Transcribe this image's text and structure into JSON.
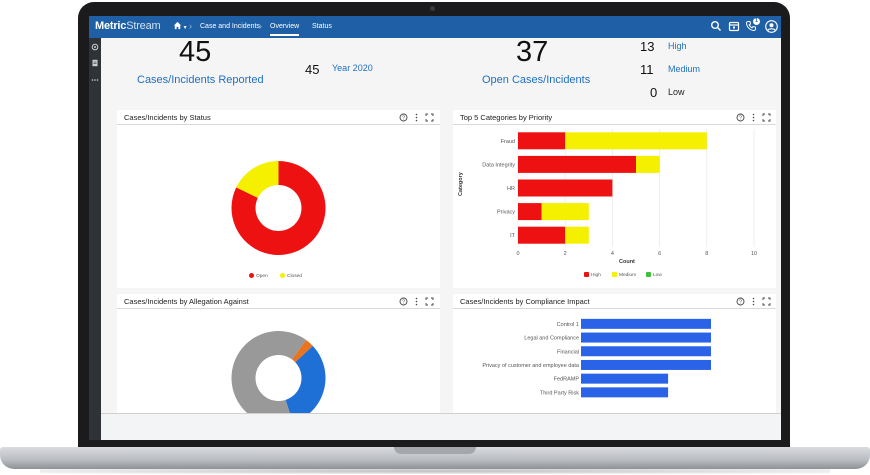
{
  "app": {
    "logo_bold": "Metric",
    "logo_light": "Stream"
  },
  "nav": {
    "breadcrumb": "Case and Incidents",
    "tabs": [
      {
        "label": "Overview",
        "active": true
      },
      {
        "label": "Status",
        "active": false
      }
    ],
    "notification_count": "1"
  },
  "kpis": {
    "reported_value": "45",
    "reported_label": "Cases/Incidents Reported",
    "year_value": "45",
    "year_label": "Year 2020",
    "open_value": "37",
    "open_label": "Open Cases/Incidents",
    "high_value": "13",
    "high_label": "High",
    "medium_value": "11",
    "medium_label": "Medium",
    "low_value": "0",
    "low_label": "Low"
  },
  "panels": {
    "status": {
      "title": "Cases/Incidents by Status",
      "legend": [
        "Open",
        "Closed"
      ]
    },
    "priority": {
      "title": "Top 5 Categories by Priority",
      "xaxis_title": "Count",
      "yaxis_title": "Category",
      "legend": [
        "High",
        "Medium",
        "Low"
      ]
    },
    "allegation": {
      "title": "Cases/Incidents by Allegation Against"
    },
    "compliance": {
      "title": "Cases/Incidents by Compliance Impact"
    }
  },
  "colors": {
    "brand": "#1f5fa5",
    "red": "#ee1111",
    "yellow": "#f5f000",
    "green": "#3bc13b",
    "blue": "#2a63e8",
    "gray": "#999999",
    "orange": "#e8741f",
    "donut_blue": "#1e6fd6"
  },
  "chart_data": [
    {
      "type": "pie",
      "title": "Cases/Incidents by Status",
      "categories": [
        "Open",
        "Closed"
      ],
      "values": [
        37,
        8
      ]
    },
    {
      "type": "bar",
      "orientation": "horizontal",
      "stacked": true,
      "title": "Top 5 Categories by Priority",
      "xlabel": "Count",
      "ylabel": "Category",
      "categories": [
        "Fraud",
        "Data Integrity",
        "HR",
        "Privacy",
        "IT"
      ],
      "series": [
        {
          "name": "High",
          "values": [
            2,
            5,
            4,
            1,
            2
          ]
        },
        {
          "name": "Medium",
          "values": [
            6,
            1,
            0,
            2,
            1
          ]
        },
        {
          "name": "Low",
          "values": [
            0,
            0,
            0,
            0,
            0
          ]
        }
      ],
      "xlim": [
        0,
        10
      ],
      "xticks": [
        0,
        2,
        4,
        6,
        8,
        10
      ],
      "legend": "bottom"
    },
    {
      "type": "pie",
      "title": "Cases/Incidents by Allegation Against",
      "values": [
        65,
        3,
        32
      ]
    },
    {
      "type": "bar",
      "orientation": "horizontal",
      "title": "Cases/Incidents by Compliance Impact",
      "categories": [
        "Control 1",
        "Legal and Compliance",
        "Financial",
        "Privacy of customer and employee data",
        "FedRAMP",
        "Third Party Risk"
      ],
      "values": [
        100,
        100,
        100,
        100,
        67,
        67
      ]
    }
  ]
}
